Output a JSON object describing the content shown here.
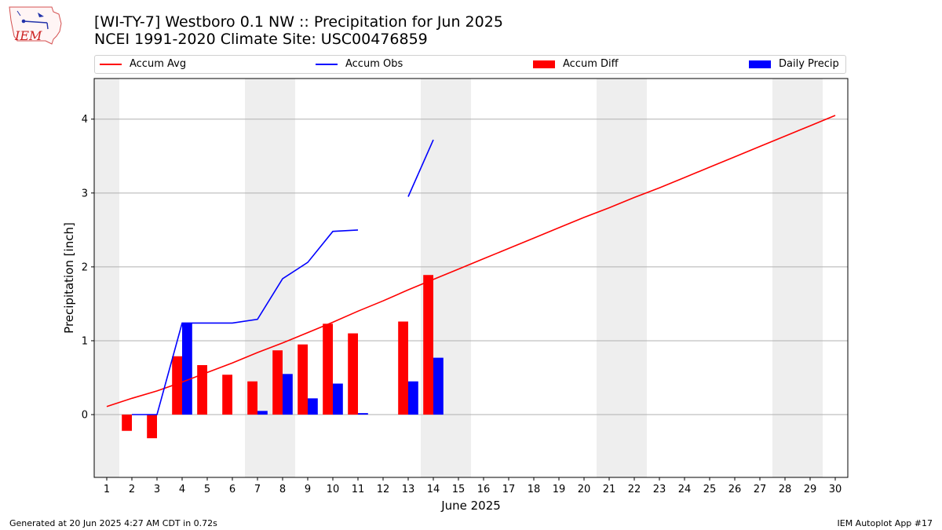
{
  "header": {
    "title_line1": "[WI-TY-7] Westboro 0.1 NW :: Precipitation for Jun 2025",
    "title_line2": "NCEI 1991-2020 Climate Site: USC00476859",
    "logo_text": "IEM"
  },
  "footer": {
    "generated": "Generated at 20 Jun 2025 4:27 AM CDT in 0.72s",
    "app": "IEM Autoplot App #17"
  },
  "colors": {
    "avg": "#ff0000",
    "obs": "#0000ff",
    "diff": "#ff0000",
    "daily": "#0000ff",
    "weekend_band": "#eeeeee",
    "grid": "#b0b0b0"
  },
  "chart_data": {
    "type": "bar",
    "xlabel": "June 2025",
    "ylabel": "Precipitation [inch]",
    "xlim": [
      0.5,
      30.5
    ],
    "ylim": [
      -0.85,
      4.55
    ],
    "yticks": [
      0,
      1,
      2,
      3,
      4
    ],
    "grid": "horizontal",
    "legend_position": "top",
    "x": [
      1,
      2,
      3,
      4,
      5,
      6,
      7,
      8,
      9,
      10,
      11,
      12,
      13,
      14,
      15,
      16,
      17,
      18,
      19,
      20,
      21,
      22,
      23,
      24,
      25,
      26,
      27,
      28,
      29,
      30
    ],
    "weekend_bands": [
      [
        0.5,
        1.5
      ],
      [
        6.5,
        8.5
      ],
      [
        13.5,
        15.5
      ],
      [
        20.5,
        22.5
      ],
      [
        27.5,
        29.5
      ]
    ],
    "series": [
      {
        "name": "Accum Avg",
        "kind": "line",
        "values": [
          0.11,
          0.22,
          0.32,
          0.44,
          0.57,
          0.7,
          0.84,
          0.97,
          1.11,
          1.25,
          1.4,
          1.54,
          1.69,
          1.83,
          1.97,
          2.11,
          2.25,
          2.39,
          2.53,
          2.67,
          2.8,
          2.94,
          3.07,
          3.21,
          3.35,
          3.49,
          3.63,
          3.77,
          3.91,
          4.05
        ]
      },
      {
        "name": "Accum Obs",
        "kind": "line",
        "values": [
          null,
          0.0,
          0.0,
          1.24,
          1.24,
          1.24,
          1.29,
          1.84,
          2.06,
          2.48,
          2.5,
          null,
          2.95,
          3.72,
          null,
          null,
          null,
          null,
          null,
          null,
          null,
          null,
          null,
          null,
          null,
          null,
          null,
          null,
          null,
          null
        ]
      },
      {
        "name": "Accum Diff",
        "kind": "bar",
        "values": [
          null,
          -0.22,
          -0.32,
          0.79,
          0.67,
          0.54,
          0.45,
          0.87,
          0.95,
          1.23,
          1.1,
          null,
          1.26,
          1.89,
          null,
          null,
          null,
          null,
          null,
          null,
          null,
          null,
          null,
          null,
          null,
          null,
          null,
          null,
          null,
          null
        ]
      },
      {
        "name": "Daily Precip",
        "kind": "bar",
        "values": [
          null,
          0.0,
          0.0,
          1.24,
          0.0,
          0.0,
          0.05,
          0.55,
          0.22,
          0.42,
          0.02,
          null,
          0.45,
          0.77,
          null,
          null,
          null,
          null,
          null,
          null,
          null,
          null,
          null,
          null,
          null,
          null,
          null,
          null,
          null,
          null
        ]
      }
    ]
  }
}
